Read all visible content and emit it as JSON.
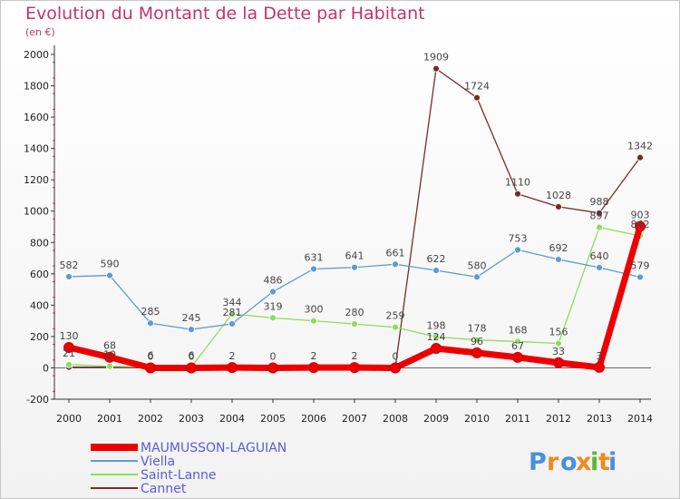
{
  "chart_data": {
    "type": "line",
    "title": "Evolution du Montant de la Dette par Habitant",
    "subtitle": "(en €)",
    "x": [
      "2000",
      "2001",
      "2002",
      "2003",
      "2004",
      "2005",
      "2006",
      "2007",
      "2008",
      "2009",
      "2010",
      "2011",
      "2012",
      "2013",
      "2014"
    ],
    "ylim": [
      -200,
      2000
    ],
    "yticks": [
      -200,
      0,
      200,
      400,
      600,
      800,
      1000,
      1200,
      1400,
      1600,
      1800,
      2000
    ],
    "grid": false,
    "legend_position": "bottom-left",
    "series": [
      {
        "name": "MAUMUSSON-LAGUIAN",
        "color": "#ee0000",
        "values": [
          130,
          68,
          0,
          0,
          2,
          0,
          2,
          2,
          0,
          124,
          96,
          67,
          33,
          3,
          903
        ],
        "labels": [
          "130",
          "68",
          "0",
          "0",
          "2",
          "0",
          "2",
          "2",
          "0",
          "124",
          "96",
          "67",
          "33",
          "3",
          "903"
        ]
      },
      {
        "name": "Viella",
        "color": "#5c9bd5",
        "values": [
          582,
          590,
          285,
          245,
          281,
          486,
          631,
          641,
          661,
          622,
          580,
          753,
          692,
          640,
          579
        ],
        "labels": [
          "582",
          "590",
          "285",
          "245",
          "281",
          "486",
          "631",
          "641",
          "661",
          "622",
          "580",
          "753",
          "692",
          "640",
          "579"
        ]
      },
      {
        "name": "Saint-Lanne",
        "color": "#8fdc5a",
        "values": [
          21,
          10,
          6,
          6,
          344,
          319,
          300,
          280,
          259,
          198,
          178,
          168,
          156,
          897,
          842
        ],
        "labels": [
          "21",
          "10",
          "6",
          "6",
          "344",
          "319",
          "300",
          "280",
          "259",
          "198",
          "178",
          "168",
          "156",
          "897",
          "842"
        ]
      },
      {
        "name": "Cannet",
        "color": "#7a2a2a",
        "values": [
          5,
          5,
          2,
          2,
          5,
          5,
          5,
          5,
          2,
          1909,
          1724,
          1110,
          1028,
          988,
          1342
        ],
        "labels": [
          "",
          "",
          "",
          "",
          "",
          "",
          "",
          "",
          "",
          "1909",
          "1724",
          "1110",
          "1028",
          "988",
          "1342"
        ]
      }
    ]
  },
  "logo": {
    "text": "Proxiti"
  }
}
